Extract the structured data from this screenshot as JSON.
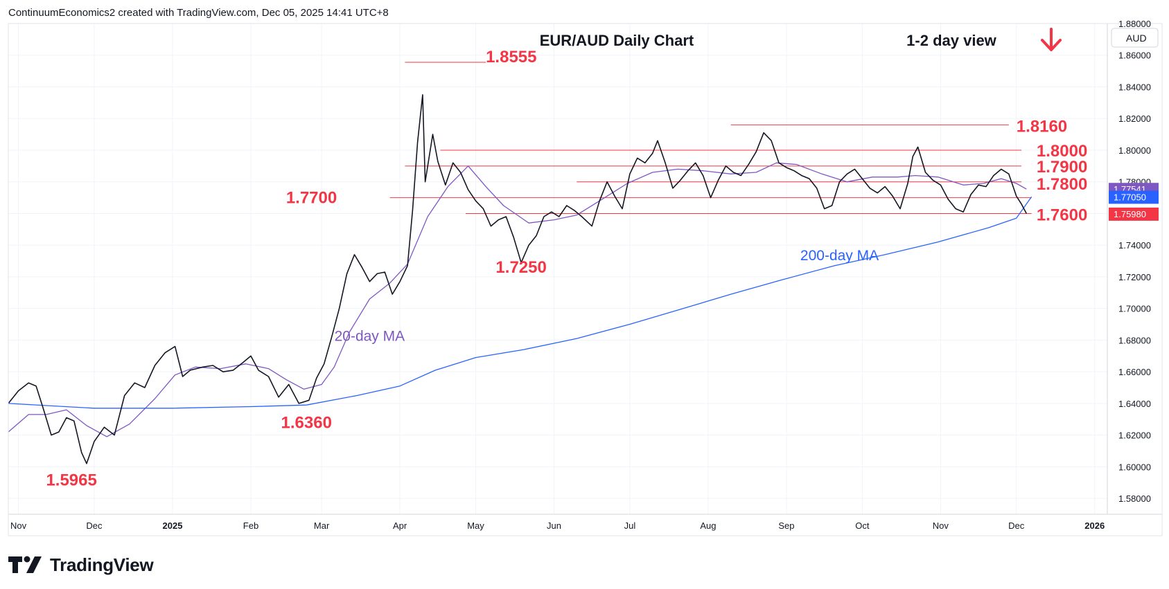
{
  "header": {
    "text": "ContinuumEconomics2 created with TradingView.com, Dec 05, 2025 14:41 UTC+8"
  },
  "footer": {
    "brand": "TradingView",
    "logo_icon": "tradingview-logo-icon"
  },
  "colors": {
    "up": "#089981",
    "down": "#f23645",
    "ma20": "#7e57c2",
    "ma200": "#2962ff",
    "level": "#f23645",
    "annot": "#f23645",
    "blue_label": "#2962ff"
  },
  "chart_data": {
    "type": "candlestick",
    "title": "EUR/AUD Daily Chart",
    "subtitle": "1-2 day view",
    "direction_icon": "arrow-down-icon",
    "currency_label": "AUD",
    "ylim": [
      1.57,
      1.88
    ],
    "y_ticks": [
      "1.58000",
      "1.60000",
      "1.62000",
      "1.64000",
      "1.66000",
      "1.68000",
      "1.70000",
      "1.72000",
      "1.74000",
      "1.76000",
      "1.78000",
      "1.80000",
      "1.82000",
      "1.84000",
      "1.86000",
      "1.88000"
    ],
    "x_ticks": [
      {
        "label": "Nov",
        "x": "2024-11-01"
      },
      {
        "label": "Dec",
        "x": "2024-12-01"
      },
      {
        "label": "2025",
        "x": "2025-01-01",
        "bold": true
      },
      {
        "label": "Feb",
        "x": "2025-02-01"
      },
      {
        "label": "Mar",
        "x": "2025-03-01"
      },
      {
        "label": "Apr",
        "x": "2025-04-01"
      },
      {
        "label": "May",
        "x": "2025-05-01"
      },
      {
        "label": "Jun",
        "x": "2025-06-01"
      },
      {
        "label": "Jul",
        "x": "2025-07-01"
      },
      {
        "label": "Aug",
        "x": "2025-08-01"
      },
      {
        "label": "Sep",
        "x": "2025-09-01"
      },
      {
        "label": "Oct",
        "x": "2025-10-01"
      },
      {
        "label": "Nov",
        "x": "2025-11-01"
      },
      {
        "label": "Dec",
        "x": "2025-12-01"
      },
      {
        "label": "2026",
        "x": "2026-01-01",
        "bold": true
      }
    ],
    "x_range": [
      "2024-10-28",
      "2026-01-06"
    ],
    "price_badges": [
      {
        "label": "1.77541",
        "value": 1.7754,
        "color": "#7e57c2"
      },
      {
        "label": "1.77050",
        "value": 1.7705,
        "color": "#2962ff"
      },
      {
        "label": "1.75980",
        "value": 1.7598,
        "color": "#f23645"
      }
    ],
    "levels": [
      {
        "label": "1.8555",
        "value": 1.8555,
        "from": "2025-04-03",
        "to": "2025-05-05",
        "label_at": "2025-05-05",
        "label_value": 1.8595
      },
      {
        "label": "1.8160",
        "value": 1.816,
        "from": "2025-08-10",
        "to": "2025-11-28",
        "label_at": "2025-12-01",
        "label_value": 1.8155
      },
      {
        "label": "1.8000",
        "value": 1.8,
        "from": "2025-04-17",
        "to": "2025-12-03",
        "label_at": "2025-12-09",
        "label_value": 1.8
      },
      {
        "label": "1.7900",
        "value": 1.79,
        "from": "2025-04-03",
        "to": "2025-12-03",
        "label_at": "2025-12-09",
        "label_value": 1.79
      },
      {
        "label": "1.7800",
        "value": 1.78,
        "from": "2025-06-10",
        "to": "2025-12-03",
        "label_at": "2025-12-09",
        "label_value": 1.7789
      },
      {
        "label": "1.7700",
        "value": 1.77,
        "from": "2025-03-28",
        "to": "2025-12-07",
        "label_at": "2025-02-25",
        "label_value": 1.7704
      },
      {
        "label": "1.7600",
        "value": 1.76,
        "from": "2025-04-27",
        "to": "2025-12-07",
        "label_at": "2025-12-09",
        "label_value": 1.7595
      }
    ],
    "annotations": [
      {
        "label": "1.5965",
        "x": "2024-11-22",
        "y": 1.5882
      },
      {
        "label": "1.6360",
        "x": "2025-02-23",
        "y": 1.6245
      },
      {
        "label": "1.7250",
        "x": "2025-05-19",
        "y": 1.7225
      },
      {
        "label": "20-day MA",
        "x": "2025-03-20",
        "y": 1.6795,
        "color": "#7e57c2"
      },
      {
        "label": "200-day MA",
        "x": "2025-09-22",
        "y": 1.7305,
        "color": "#2962ff"
      }
    ],
    "series": [
      {
        "name": "20-day MA",
        "color": "#7e57c2",
        "points": [
          [
            "2024-10-28",
            1.622
          ],
          [
            "2024-11-05",
            1.633
          ],
          [
            "2024-11-12",
            1.633
          ],
          [
            "2024-11-20",
            1.636
          ],
          [
            "2024-11-28",
            1.626
          ],
          [
            "2024-12-06",
            1.619
          ],
          [
            "2024-12-15",
            1.627
          ],
          [
            "2024-12-25",
            1.643
          ],
          [
            "2025-01-02",
            1.658
          ],
          [
            "2025-01-10",
            1.663
          ],
          [
            "2025-01-20",
            1.662
          ],
          [
            "2025-01-30",
            1.665
          ],
          [
            "2025-02-08",
            1.662
          ],
          [
            "2025-02-15",
            1.655
          ],
          [
            "2025-02-22",
            1.649
          ],
          [
            "2025-03-01",
            1.652
          ],
          [
            "2025-03-06",
            1.663
          ],
          [
            "2025-03-12",
            1.685
          ],
          [
            "2025-03-20",
            1.706
          ],
          [
            "2025-03-28",
            1.716
          ],
          [
            "2025-04-04",
            1.728
          ],
          [
            "2025-04-12",
            1.758
          ],
          [
            "2025-04-20",
            1.777
          ],
          [
            "2025-04-28",
            1.79
          ],
          [
            "2025-05-05",
            1.777
          ],
          [
            "2025-05-12",
            1.765
          ],
          [
            "2025-05-22",
            1.754
          ],
          [
            "2025-06-01",
            1.756
          ],
          [
            "2025-06-10",
            1.759
          ],
          [
            "2025-06-20",
            1.769
          ],
          [
            "2025-06-30",
            1.779
          ],
          [
            "2025-07-10",
            1.786
          ],
          [
            "2025-07-20",
            1.788
          ],
          [
            "2025-07-30",
            1.787
          ],
          [
            "2025-08-10",
            1.785
          ],
          [
            "2025-08-20",
            1.786
          ],
          [
            "2025-08-28",
            1.792
          ],
          [
            "2025-09-05",
            1.791
          ],
          [
            "2025-09-15",
            1.785
          ],
          [
            "2025-09-25",
            1.78
          ],
          [
            "2025-10-05",
            1.783
          ],
          [
            "2025-10-15",
            1.783
          ],
          [
            "2025-10-22",
            1.784
          ],
          [
            "2025-10-31",
            1.783
          ],
          [
            "2025-11-10",
            1.778
          ],
          [
            "2025-11-18",
            1.779
          ],
          [
            "2025-11-25",
            1.782
          ],
          [
            "2025-12-01",
            1.779
          ],
          [
            "2025-12-05",
            1.7754
          ]
        ]
      },
      {
        "name": "200-day MA",
        "color": "#2962ff",
        "points": [
          [
            "2024-10-28",
            1.64
          ],
          [
            "2024-12-01",
            1.637
          ],
          [
            "2025-01-01",
            1.637
          ],
          [
            "2025-02-01",
            1.638
          ],
          [
            "2025-02-23",
            1.639
          ],
          [
            "2025-03-15",
            1.645
          ],
          [
            "2025-04-01",
            1.651
          ],
          [
            "2025-04-15",
            1.661
          ],
          [
            "2025-05-01",
            1.669
          ],
          [
            "2025-05-20",
            1.674
          ],
          [
            "2025-06-10",
            1.681
          ],
          [
            "2025-07-01",
            1.69
          ],
          [
            "2025-07-20",
            1.699
          ],
          [
            "2025-08-10",
            1.709
          ],
          [
            "2025-08-30",
            1.718
          ],
          [
            "2025-09-20",
            1.727
          ],
          [
            "2025-10-10",
            1.734
          ],
          [
            "2025-10-31",
            1.742
          ],
          [
            "2025-11-20",
            1.751
          ],
          [
            "2025-12-01",
            1.757
          ],
          [
            "2025-12-07",
            1.7705
          ]
        ]
      },
      {
        "name": "Price",
        "color": "#131722",
        "points": [
          [
            "2024-10-28",
            1.64
          ],
          [
            "2024-11-01",
            1.648
          ],
          [
            "2024-11-05",
            1.653
          ],
          [
            "2024-11-08",
            1.651
          ],
          [
            "2024-11-11",
            1.636
          ],
          [
            "2024-11-14",
            1.62
          ],
          [
            "2024-11-17",
            1.622
          ],
          [
            "2024-11-20",
            1.631
          ],
          [
            "2024-11-23",
            1.629
          ],
          [
            "2024-11-26",
            1.609
          ],
          [
            "2024-11-28",
            1.602
          ],
          [
            "2024-12-01",
            1.616
          ],
          [
            "2024-12-05",
            1.625
          ],
          [
            "2024-12-09",
            1.62
          ],
          [
            "2024-12-13",
            1.645
          ],
          [
            "2024-12-17",
            1.653
          ],
          [
            "2024-12-21",
            1.65
          ],
          [
            "2024-12-25",
            1.664
          ],
          [
            "2024-12-29",
            1.672
          ],
          [
            "2025-01-02",
            1.676
          ],
          [
            "2025-01-05",
            1.657
          ],
          [
            "2025-01-08",
            1.661
          ],
          [
            "2025-01-13",
            1.663
          ],
          [
            "2025-01-17",
            1.664
          ],
          [
            "2025-01-21",
            1.66
          ],
          [
            "2025-01-25",
            1.661
          ],
          [
            "2025-01-29",
            1.666
          ],
          [
            "2025-02-01",
            1.67
          ],
          [
            "2025-02-04",
            1.661
          ],
          [
            "2025-02-08",
            1.657
          ],
          [
            "2025-02-12",
            1.644
          ],
          [
            "2025-02-16",
            1.652
          ],
          [
            "2025-02-20",
            1.64
          ],
          [
            "2025-02-24",
            1.642
          ],
          [
            "2025-02-27",
            1.656
          ],
          [
            "2025-03-02",
            1.665
          ],
          [
            "2025-03-05",
            1.682
          ],
          [
            "2025-03-08",
            1.7
          ],
          [
            "2025-03-11",
            1.722
          ],
          [
            "2025-03-14",
            1.734
          ],
          [
            "2025-03-17",
            1.726
          ],
          [
            "2025-03-20",
            1.717
          ],
          [
            "2025-03-23",
            1.722
          ],
          [
            "2025-03-26",
            1.723
          ],
          [
            "2025-03-29",
            1.709
          ],
          [
            "2025-04-01",
            1.717
          ],
          [
            "2025-04-04",
            1.727
          ],
          [
            "2025-04-06",
            1.762
          ],
          [
            "2025-04-08",
            1.805
          ],
          [
            "2025-04-10",
            1.835
          ],
          [
            "2025-04-11",
            1.78
          ],
          [
            "2025-04-14",
            1.81
          ],
          [
            "2025-04-16",
            1.793
          ],
          [
            "2025-04-19",
            1.778
          ],
          [
            "2025-04-22",
            1.792
          ],
          [
            "2025-04-25",
            1.786
          ],
          [
            "2025-04-28",
            1.775
          ],
          [
            "2025-05-01",
            1.768
          ],
          [
            "2025-05-04",
            1.763
          ],
          [
            "2025-05-07",
            1.752
          ],
          [
            "2025-05-10",
            1.756
          ],
          [
            "2025-05-13",
            1.758
          ],
          [
            "2025-05-16",
            1.745
          ],
          [
            "2025-05-19",
            1.729
          ],
          [
            "2025-05-22",
            1.74
          ],
          [
            "2025-05-25",
            1.746
          ],
          [
            "2025-05-28",
            1.758
          ],
          [
            "2025-05-31",
            1.761
          ],
          [
            "2025-06-03",
            1.758
          ],
          [
            "2025-06-06",
            1.765
          ],
          [
            "2025-06-09",
            1.762
          ],
          [
            "2025-06-12",
            1.758
          ],
          [
            "2025-06-16",
            1.752
          ],
          [
            "2025-06-19",
            1.768
          ],
          [
            "2025-06-22",
            1.78
          ],
          [
            "2025-06-25",
            1.771
          ],
          [
            "2025-06-28",
            1.763
          ],
          [
            "2025-07-01",
            1.785
          ],
          [
            "2025-07-04",
            1.795
          ],
          [
            "2025-07-07",
            1.792
          ],
          [
            "2025-07-10",
            1.798
          ],
          [
            "2025-07-12",
            1.806
          ],
          [
            "2025-07-15",
            1.792
          ],
          [
            "2025-07-18",
            1.776
          ],
          [
            "2025-07-21",
            1.781
          ],
          [
            "2025-07-24",
            1.787
          ],
          [
            "2025-07-27",
            1.792
          ],
          [
            "2025-07-30",
            1.784
          ],
          [
            "2025-08-02",
            1.77
          ],
          [
            "2025-08-05",
            1.781
          ],
          [
            "2025-08-08",
            1.79
          ],
          [
            "2025-08-11",
            1.786
          ],
          [
            "2025-08-14",
            1.784
          ],
          [
            "2025-08-17",
            1.791
          ],
          [
            "2025-08-20",
            1.799
          ],
          [
            "2025-08-23",
            1.811
          ],
          [
            "2025-08-26",
            1.806
          ],
          [
            "2025-08-29",
            1.792
          ],
          [
            "2025-09-01",
            1.789
          ],
          [
            "2025-09-04",
            1.787
          ],
          [
            "2025-09-07",
            1.784
          ],
          [
            "2025-09-10",
            1.782
          ],
          [
            "2025-09-13",
            1.776
          ],
          [
            "2025-09-16",
            1.763
          ],
          [
            "2025-09-19",
            1.765
          ],
          [
            "2025-09-22",
            1.78
          ],
          [
            "2025-09-25",
            1.785
          ],
          [
            "2025-09-28",
            1.788
          ],
          [
            "2025-10-01",
            1.782
          ],
          [
            "2025-10-04",
            1.776
          ],
          [
            "2025-10-07",
            1.773
          ],
          [
            "2025-10-10",
            1.777
          ],
          [
            "2025-10-13",
            1.771
          ],
          [
            "2025-10-16",
            1.763
          ],
          [
            "2025-10-19",
            1.779
          ],
          [
            "2025-10-21",
            1.796
          ],
          [
            "2025-10-23",
            1.802
          ],
          [
            "2025-10-26",
            1.786
          ],
          [
            "2025-10-29",
            1.781
          ],
          [
            "2025-11-01",
            1.778
          ],
          [
            "2025-11-04",
            1.769
          ],
          [
            "2025-11-07",
            1.763
          ],
          [
            "2025-11-10",
            1.761
          ],
          [
            "2025-11-13",
            1.772
          ],
          [
            "2025-11-16",
            1.778
          ],
          [
            "2025-11-19",
            1.777
          ],
          [
            "2025-11-22",
            1.784
          ],
          [
            "2025-11-25",
            1.788
          ],
          [
            "2025-11-28",
            1.785
          ],
          [
            "2025-12-01",
            1.771
          ],
          [
            "2025-12-03",
            1.766
          ],
          [
            "2025-12-05",
            1.76
          ]
        ]
      }
    ]
  }
}
